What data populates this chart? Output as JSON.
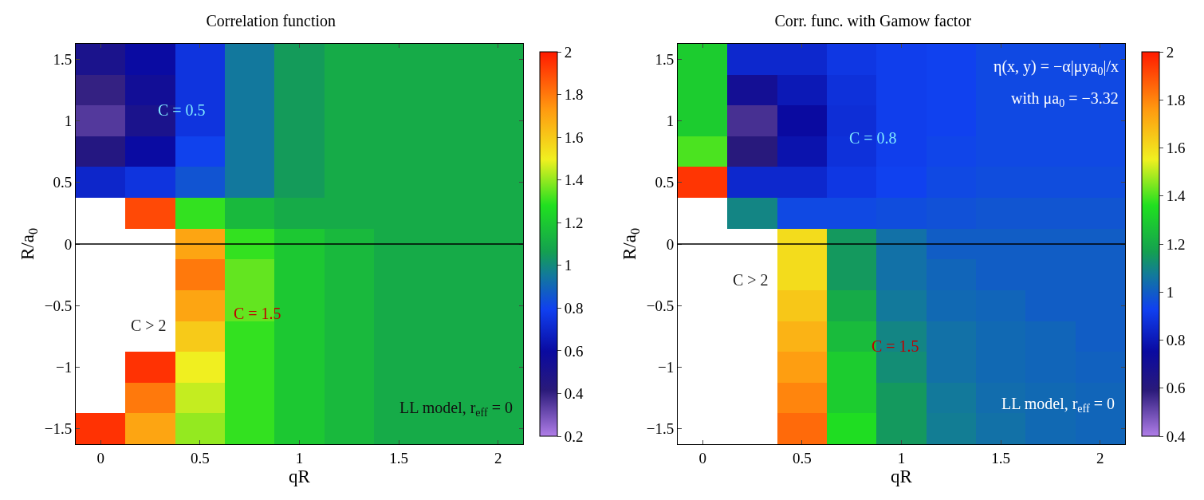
{
  "chart_data": [
    {
      "type": "heatmap",
      "title": "Correlation function",
      "xlabel": "qR",
      "ylabel": "R/a$_{0}$",
      "categories": [
        "0",
        null,
        "0.5",
        null,
        "1",
        null,
        "1.5",
        null,
        "2"
      ],
      "y_categories": [
        "1.5",
        null,
        "1",
        null,
        "0.5",
        null,
        "0",
        null,
        "−0.5",
        null,
        "−1",
        null,
        "−1.5"
      ],
      "cells": [
        [
          0.5,
          0.6,
          0.75,
          0.95,
          1.05,
          1.1,
          1.1,
          1.1,
          1.1
        ],
        [
          0.4,
          0.55,
          0.75,
          0.95,
          1.05,
          1.1,
          1.1,
          1.1,
          1.1
        ],
        [
          0.35,
          0.5,
          0.75,
          0.95,
          1.05,
          1.1,
          1.1,
          1.1,
          1.1
        ],
        [
          0.45,
          0.6,
          0.8,
          0.95,
          1.05,
          1.1,
          1.1,
          1.1,
          1.1
        ],
        [
          0.7,
          0.75,
          0.85,
          0.95,
          1.05,
          1.1,
          1.1,
          1.1,
          1.1
        ],
        [
          null,
          1.9,
          1.3,
          1.15,
          1.1,
          1.1,
          1.1,
          1.1,
          1.1
        ],
        [
          null,
          null,
          1.7,
          1.3,
          1.2,
          1.15,
          1.1,
          1.1,
          1.1
        ],
        [
          null,
          null,
          1.8,
          1.35,
          1.2,
          1.15,
          1.1,
          1.1,
          1.1
        ],
        [
          null,
          null,
          1.7,
          1.35,
          1.2,
          1.15,
          1.1,
          1.1,
          1.1
        ],
        [
          null,
          null,
          1.6,
          1.3,
          1.2,
          1.15,
          1.1,
          1.1,
          1.1
        ],
        [
          null,
          1.95,
          1.5,
          1.3,
          1.2,
          1.15,
          1.1,
          1.1,
          1.1
        ],
        [
          null,
          1.8,
          1.45,
          1.3,
          1.2,
          1.15,
          1.1,
          1.1,
          1.1
        ],
        [
          1.95,
          1.7,
          1.4,
          1.3,
          1.2,
          1.15,
          1.1,
          1.1,
          1.1
        ]
      ],
      "clim": [
        0.2,
        2
      ],
      "cticks": [
        0.2,
        0.4,
        0.6,
        0.8,
        1,
        1.2,
        1.4,
        1.6,
        1.8,
        2
      ],
      "ref_lines": [
        {
          "axis": "y",
          "value": "0",
          "color": "#000000"
        }
      ],
      "annotations": [
        "C = 0.5",
        "C > 2",
        "C = 1.5",
        "LL model, r$_{eff}$ = 0"
      ]
    },
    {
      "type": "heatmap",
      "title": "Corr. func. with Gamow factor",
      "xlabel": "qR",
      "ylabel": "R/a$_{0}$",
      "categories": [
        "0",
        null,
        "0.5",
        null,
        "1",
        null,
        "1.5",
        null,
        "2"
      ],
      "y_categories": [
        "1.5",
        null,
        "1",
        null,
        "0.5",
        null,
        "0",
        null,
        "−0.5",
        null,
        "−1",
        null,
        "−1.5"
      ],
      "cells": [
        [
          1.3,
          0.85,
          0.85,
          0.9,
          0.92,
          0.93,
          0.95,
          0.95,
          0.95
        ],
        [
          1.3,
          0.7,
          0.8,
          0.88,
          0.92,
          0.93,
          0.95,
          0.95,
          0.95
        ],
        [
          1.3,
          0.55,
          0.75,
          0.87,
          0.92,
          0.93,
          0.95,
          0.95,
          0.95
        ],
        [
          1.4,
          0.6,
          0.78,
          0.88,
          0.92,
          0.94,
          0.95,
          0.95,
          0.95
        ],
        [
          1.95,
          0.85,
          0.85,
          0.9,
          0.93,
          0.95,
          0.96,
          0.96,
          0.96
        ],
        [
          null,
          1.1,
          0.95,
          0.95,
          0.96,
          0.97,
          0.98,
          0.98,
          0.98
        ],
        [
          null,
          null,
          1.6,
          1.15,
          1.05,
          1,
          1,
          1,
          1
        ],
        [
          null,
          null,
          1.6,
          1.15,
          1.05,
          1.02,
          1,
          1,
          1
        ],
        [
          null,
          null,
          1.65,
          1.2,
          1.07,
          1.03,
          1.02,
          1,
          1
        ],
        [
          null,
          null,
          1.7,
          1.25,
          1.1,
          1.05,
          1.03,
          1.02,
          1
        ],
        [
          null,
          null,
          1.75,
          1.3,
          1.12,
          1.05,
          1.03,
          1.02,
          1.01
        ],
        [
          null,
          null,
          1.8,
          1.3,
          1.15,
          1.07,
          1.04,
          1.03,
          1.02
        ],
        [
          null,
          null,
          1.85,
          1.35,
          1.15,
          1.08,
          1.05,
          1.03,
          1.02
        ]
      ],
      "clim": [
        0.4,
        2
      ],
      "cticks": [
        0.4,
        0.6,
        0.8,
        1,
        1.2,
        1.4,
        1.6,
        1.8,
        2
      ],
      "ref_lines": [
        {
          "axis": "y",
          "value": "0",
          "color": "#000000"
        }
      ],
      "annotations": [
        "η(x, y) = −α|μya$_{0}$|/x",
        "with μa$_{0}$ = −3.32",
        "C = 0.8",
        "C > 2",
        "C = 1.5",
        "LL model, r$_{eff}$ = 0"
      ]
    }
  ]
}
